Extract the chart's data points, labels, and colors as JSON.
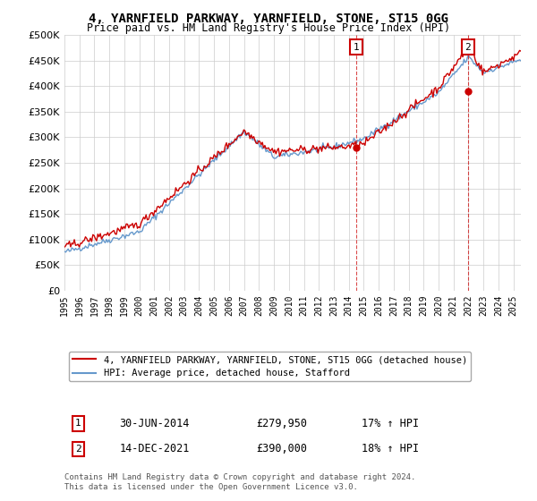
{
  "title_line1": "4, YARNFIELD PARKWAY, YARNFIELD, STONE, ST15 0GG",
  "title_line2": "Price paid vs. HM Land Registry's House Price Index (HPI)",
  "ytick_values": [
    0,
    50000,
    100000,
    150000,
    200000,
    250000,
    300000,
    350000,
    400000,
    450000,
    500000
  ],
  "xlim_start": 1995.0,
  "xlim_end": 2025.5,
  "ylim_min": 0,
  "ylim_max": 500000,
  "red_line_color": "#cc0000",
  "blue_line_color": "#6699cc",
  "marker1_date": 2014.5,
  "marker1_value": 279950,
  "marker1_label": "1",
  "marker2_date": 2021.96,
  "marker2_value": 390000,
  "marker2_label": "2",
  "legend_red": "4, YARNFIELD PARKWAY, YARNFIELD, STONE, ST15 0GG (detached house)",
  "legend_blue": "HPI: Average price, detached house, Stafford",
  "annot1_date": "30-JUN-2014",
  "annot1_price": "£279,950",
  "annot1_hpi": "17% ↑ HPI",
  "annot2_date": "14-DEC-2021",
  "annot2_price": "£390,000",
  "annot2_hpi": "18% ↑ HPI",
  "footer": "Contains HM Land Registry data © Crown copyright and database right 2024.\nThis data is licensed under the Open Government Licence v3.0.",
  "background_color": "#ffffff",
  "grid_color": "#cccccc"
}
